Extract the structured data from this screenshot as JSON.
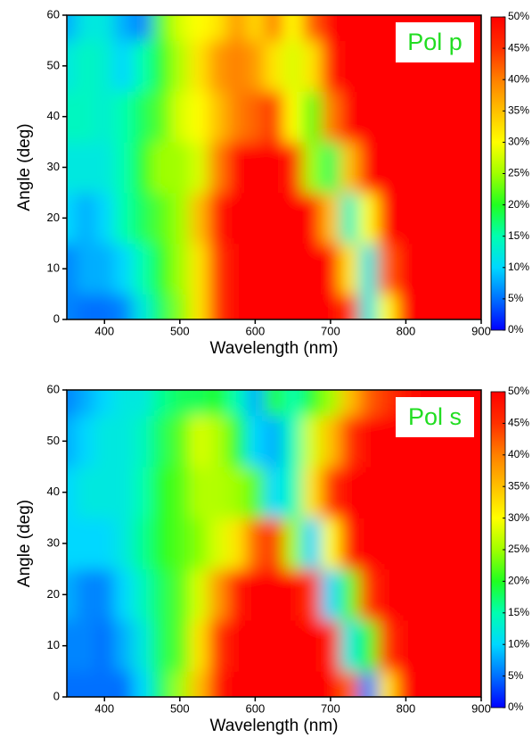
{
  "chart_data": [
    {
      "type": "heatmap",
      "annotation": "Pol p",
      "annotation_color": "#22dd22",
      "xlabel": "Wavelength (nm)",
      "ylabel": "Angle (deg)",
      "x": [
        350,
        375,
        400,
        425,
        450,
        475,
        500,
        525,
        550,
        575,
        600,
        625,
        650,
        675,
        700,
        725,
        750,
        775,
        800,
        825,
        850,
        875,
        900
      ],
      "y": [
        0,
        10,
        20,
        30,
        40,
        50,
        60
      ],
      "z": [
        [
          6,
          5,
          5,
          6,
          12,
          18,
          24,
          32,
          45,
          50,
          50,
          50,
          50,
          50,
          50,
          45,
          12,
          30,
          50,
          50,
          50,
          50,
          50
        ],
        [
          6,
          8,
          8,
          10,
          15,
          20,
          25,
          32,
          45,
          50,
          50,
          50,
          50,
          50,
          50,
          32,
          12,
          42,
          50,
          50,
          50,
          50,
          50
        ],
        [
          10,
          8,
          10,
          15,
          18,
          22,
          25,
          35,
          48,
          50,
          50,
          50,
          50,
          50,
          35,
          14,
          30,
          50,
          50,
          50,
          50,
          50,
          50
        ],
        [
          12,
          12,
          12,
          15,
          20,
          25,
          25,
          28,
          40,
          50,
          50,
          50,
          48,
          25,
          18,
          35,
          50,
          50,
          50,
          50,
          50,
          50,
          50
        ],
        [
          14,
          14,
          13,
          15,
          18,
          22,
          28,
          30,
          35,
          40,
          42,
          45,
          30,
          22,
          40,
          50,
          50,
          50,
          50,
          50,
          50,
          50,
          50
        ],
        [
          12,
          14,
          13,
          10,
          15,
          20,
          26,
          32,
          38,
          40,
          38,
          32,
          28,
          32,
          48,
          50,
          50,
          50,
          50,
          50,
          50,
          50,
          50
        ],
        [
          8,
          12,
          12,
          8,
          6,
          22,
          28,
          30,
          32,
          38,
          33,
          40,
          30,
          42,
          50,
          50,
          50,
          50,
          50,
          50,
          50,
          50,
          50
        ]
      ],
      "xlim": [
        350,
        900
      ],
      "xticks": [
        400,
        500,
        600,
        700,
        800,
        900
      ],
      "ylim": [
        0,
        60
      ],
      "yticks": [
        0,
        10,
        20,
        30,
        40,
        50,
        60
      ],
      "clim": [
        0,
        50
      ],
      "colormap": [
        "#0000ff",
        "#0070ff",
        "#00d8ff",
        "#00ffb0",
        "#20ff20",
        "#a0ff00",
        "#ffff00",
        "#ffc000",
        "#ff8000",
        "#ff3000",
        "#ff0000"
      ],
      "cticks": [
        {
          "value": 0,
          "label": "0%"
        },
        {
          "value": 5,
          "label": "5%"
        },
        {
          "value": 10,
          "label": "10%"
        },
        {
          "value": 15,
          "label": "15%"
        },
        {
          "value": 20,
          "label": "20%"
        },
        {
          "value": 25,
          "label": "25%"
        },
        {
          "value": 30,
          "label": "30%"
        },
        {
          "value": 35,
          "label": "35%"
        },
        {
          "value": 40,
          "label": "40%"
        },
        {
          "value": 45,
          "label": "45%"
        },
        {
          "value": 50,
          "label": "50%"
        }
      ]
    },
    {
      "type": "heatmap",
      "annotation": "Pol s",
      "annotation_color": "#22dd22",
      "xlabel": "Wavelength (nm)",
      "ylabel": "Angle (deg)",
      "x": [
        350,
        375,
        400,
        425,
        450,
        475,
        500,
        525,
        550,
        575,
        600,
        625,
        650,
        675,
        700,
        725,
        750,
        775,
        800,
        825,
        850,
        875,
        900
      ],
      "y": [
        0,
        10,
        20,
        30,
        40,
        50,
        60
      ],
      "z": [
        [
          5,
          5,
          5,
          5,
          10,
          18,
          25,
          35,
          48,
          50,
          50,
          50,
          50,
          50,
          50,
          42,
          6,
          32,
          50,
          50,
          50,
          50,
          50
        ],
        [
          6,
          6,
          5,
          8,
          12,
          18,
          22,
          32,
          45,
          50,
          50,
          50,
          50,
          50,
          48,
          12,
          20,
          45,
          50,
          50,
          50,
          50,
          50
        ],
        [
          8,
          6,
          6,
          10,
          14,
          18,
          22,
          28,
          38,
          48,
          50,
          50,
          50,
          45,
          10,
          22,
          45,
          50,
          50,
          50,
          50,
          50,
          50
        ],
        [
          10,
          10,
          10,
          12,
          16,
          20,
          22,
          24,
          28,
          32,
          42,
          45,
          25,
          10,
          30,
          48,
          50,
          50,
          50,
          50,
          50,
          50,
          50
        ],
        [
          10,
          12,
          12,
          12,
          15,
          20,
          22,
          26,
          26,
          25,
          22,
          10,
          15,
          32,
          45,
          50,
          50,
          50,
          50,
          50,
          50,
          50,
          50
        ],
        [
          8,
          10,
          12,
          12,
          14,
          18,
          22,
          28,
          26,
          20,
          10,
          8,
          15,
          28,
          35,
          45,
          50,
          50,
          50,
          50,
          50,
          50,
          50
        ],
        [
          6,
          8,
          10,
          12,
          12,
          16,
          18,
          18,
          20,
          15,
          8,
          20,
          15,
          20,
          25,
          35,
          42,
          45,
          48,
          50,
          50,
          50,
          50
        ]
      ],
      "xlim": [
        350,
        900
      ],
      "xticks": [
        400,
        500,
        600,
        700,
        800,
        900
      ],
      "ylim": [
        0,
        60
      ],
      "yticks": [
        0,
        10,
        20,
        30,
        40,
        50,
        60
      ],
      "clim": [
        0,
        50
      ],
      "colormap": [
        "#0000ff",
        "#0070ff",
        "#00d8ff",
        "#00ffb0",
        "#20ff20",
        "#a0ff00",
        "#ffff00",
        "#ffc000",
        "#ff8000",
        "#ff3000",
        "#ff0000"
      ],
      "cticks": [
        {
          "value": 0,
          "label": "0%"
        },
        {
          "value": 5,
          "label": "5%"
        },
        {
          "value": 10,
          "label": "10%"
        },
        {
          "value": 15,
          "label": "15%"
        },
        {
          "value": 20,
          "label": "20%"
        },
        {
          "value": 25,
          "label": "25%"
        },
        {
          "value": 30,
          "label": "30%"
        },
        {
          "value": 35,
          "label": "35%"
        },
        {
          "value": 40,
          "label": "40%"
        },
        {
          "value": 45,
          "label": "45%"
        },
        {
          "value": 50,
          "label": "50%"
        }
      ]
    }
  ]
}
